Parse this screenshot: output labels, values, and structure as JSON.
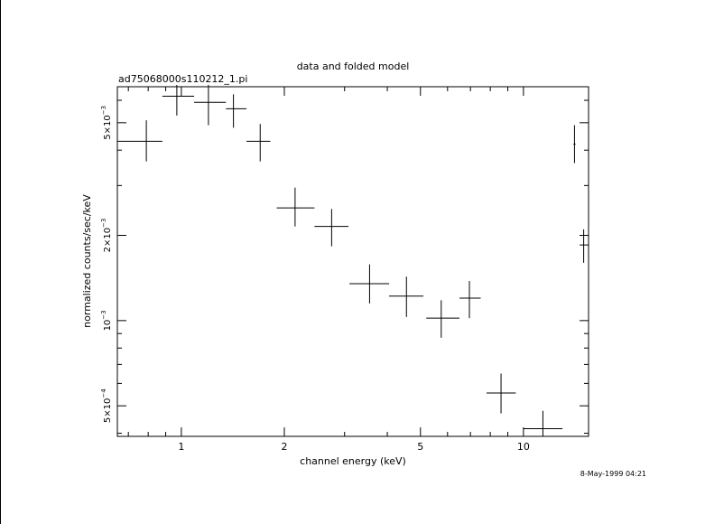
{
  "chart_data": {
    "type": "scatter",
    "title": "data and folded model",
    "subtitle": "ad75068000s110212_1.pi",
    "xlabel": "channel energy (keV)",
    "ylabel": "normalized counts/sec/keV",
    "timestamp": "8-May-1999 04:21",
    "x_scale": "log",
    "y_scale": "log",
    "xlim": [
      0.65,
      15.5
    ],
    "ylim": [
      0.00039,
      0.0067
    ],
    "x_ticks": [
      {
        "value": 1,
        "label": "1"
      },
      {
        "value": 2,
        "label": "2"
      },
      {
        "value": 5,
        "label": "5"
      },
      {
        "value": 10,
        "label": "10"
      }
    ],
    "y_ticks": [
      {
        "value": 0.0005,
        "mantissa": "5×10",
        "exp": "−4"
      },
      {
        "value": 0.001,
        "mantissa": "10",
        "exp": "−3"
      },
      {
        "value": 0.002,
        "mantissa": "2×10",
        "exp": "−3"
      },
      {
        "value": 0.005,
        "mantissa": "5×10",
        "exp": "−3"
      }
    ],
    "series": [
      {
        "points": [
          {
            "x": 0.79,
            "xlo": 0.65,
            "xhi": 0.88,
            "y": 0.0043,
            "ylo": 0.00365,
            "yhi": 0.0051
          },
          {
            "x": 0.97,
            "xlo": 0.88,
            "xhi": 1.09,
            "y": 0.0062,
            "ylo": 0.0053,
            "yhi": 0.0068
          },
          {
            "x": 1.2,
            "xlo": 1.09,
            "xhi": 1.35,
            "y": 0.0059,
            "ylo": 0.0049,
            "yhi": 0.0068
          },
          {
            "x": 1.42,
            "xlo": 1.35,
            "xhi": 1.55,
            "y": 0.0056,
            "ylo": 0.0048,
            "yhi": 0.0063
          },
          {
            "x": 1.7,
            "xlo": 1.55,
            "xhi": 1.82,
            "y": 0.0043,
            "ylo": 0.00365,
            "yhi": 0.00495
          },
          {
            "x": 2.15,
            "xlo": 1.9,
            "xhi": 2.45,
            "y": 0.0025,
            "ylo": 0.00215,
            "yhi": 0.00295
          },
          {
            "x": 2.75,
            "xlo": 2.45,
            "xhi": 3.08,
            "y": 0.00215,
            "ylo": 0.00183,
            "yhi": 0.00248
          },
          {
            "x": 3.55,
            "xlo": 3.1,
            "xhi": 4.05,
            "y": 0.00135,
            "ylo": 0.00115,
            "yhi": 0.00158
          },
          {
            "x": 4.55,
            "xlo": 4.05,
            "xhi": 5.1,
            "y": 0.00122,
            "ylo": 0.00103,
            "yhi": 0.00143
          },
          {
            "x": 5.75,
            "xlo": 5.2,
            "xhi": 6.5,
            "y": 0.00102,
            "ylo": 0.00087,
            "yhi": 0.00118
          },
          {
            "x": 6.95,
            "xlo": 6.5,
            "xhi": 7.5,
            "y": 0.0012,
            "ylo": 0.00102,
            "yhi": 0.00138
          },
          {
            "x": 8.6,
            "xlo": 7.8,
            "xhi": 9.5,
            "y": 0.000555,
            "ylo": 0.00047,
            "yhi": 0.00065
          },
          {
            "x": 11.4,
            "xlo": 10,
            "xhi": 13.0,
            "y": 0.000415,
            "ylo": 0.00039,
            "yhi": 0.00048
          },
          {
            "x": 14.1,
            "xlo": 14.0,
            "xhi": 14.2,
            "y": 0.0042,
            "ylo": 0.0036,
            "yhi": 0.0049
          },
          {
            "x": 15.0,
            "xlo": 14.6,
            "xhi": 15.5,
            "y": 0.00185,
            "ylo": 0.0016,
            "yhi": 0.0021
          }
        ]
      }
    ]
  }
}
